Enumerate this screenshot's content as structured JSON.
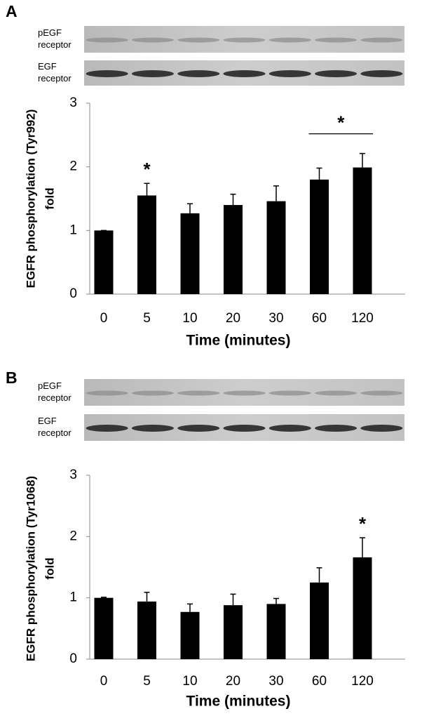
{
  "chart_data": [
    {
      "type": "bar",
      "panel": "A",
      "blot_labels": [
        "pEGF receptor",
        "EGF receptor"
      ],
      "y_label": [
        "EGFR phosphorylation (Tyr992)",
        "fold"
      ],
      "x_label": "Time (minutes)",
      "categories": [
        "0",
        "5",
        "10",
        "20",
        "30",
        "60",
        "120"
      ],
      "values": [
        1.0,
        1.55,
        1.27,
        1.4,
        1.46,
        1.8,
        1.99
      ],
      "errors": [
        0,
        0.19,
        0.15,
        0.17,
        0.24,
        0.18,
        0.22
      ],
      "color": "#000000",
      "ylim": [
        0,
        3
      ],
      "yticks": [
        0,
        1,
        2,
        3
      ],
      "annotations": [
        {
          "text": "*",
          "categories": [
            "5"
          ]
        },
        {
          "text": "*",
          "categories": [
            "60",
            "120"
          ]
        }
      ]
    },
    {
      "type": "bar",
      "panel": "B",
      "blot_labels": [
        "pEGF receptor",
        "EGF receptor"
      ],
      "y_label": [
        "EGFR phosphorylation (Tyr1068)",
        "fold"
      ],
      "x_label": "Time (minutes)",
      "categories": [
        "0",
        "5",
        "10",
        "20",
        "30",
        "60",
        "120"
      ],
      "values": [
        1.0,
        0.94,
        0.77,
        0.88,
        0.9,
        1.25,
        1.66
      ],
      "errors": [
        0.01,
        0.15,
        0.13,
        0.18,
        0.09,
        0.24,
        0.32
      ],
      "color": "#000000",
      "ylim": [
        0,
        3
      ],
      "yticks": [
        0,
        1,
        2,
        3
      ],
      "annotations": [
        {
          "text": "*",
          "categories": [
            "120"
          ]
        }
      ]
    }
  ]
}
